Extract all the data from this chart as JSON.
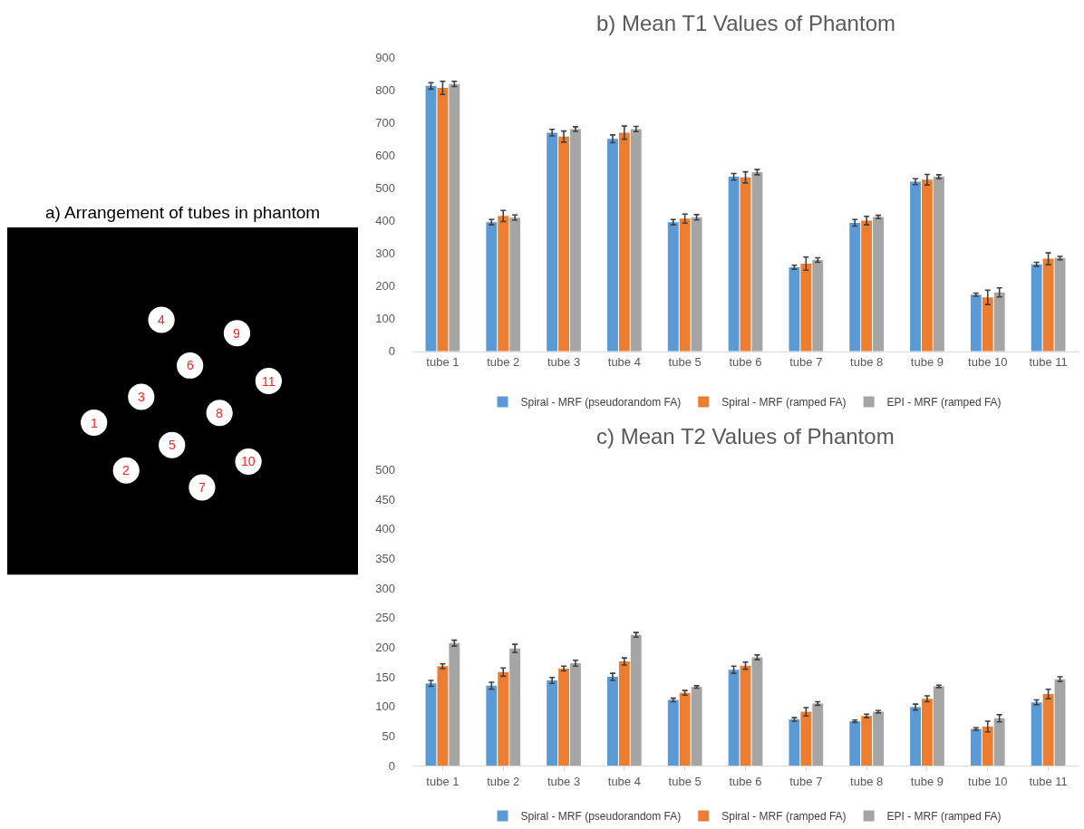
{
  "chart_data": [
    {
      "type": "other",
      "title": "a) Arrangement of tubes in phantom",
      "annotations": [
        "1",
        "2",
        "3",
        "4",
        "5",
        "6",
        "7",
        "8",
        "9",
        "10",
        "11"
      ]
    },
    {
      "type": "bar",
      "title": "b) Mean T1 Values of Phantom",
      "categories": [
        "tube 1",
        "tube 2",
        "tube 3",
        "tube 4",
        "tube 5",
        "tube 6",
        "tube 7",
        "tube 8",
        "tube 9",
        "tube 10",
        "tube 11"
      ],
      "series": [
        {
          "name": "Spiral - MRF (pseudorandom FA)",
          "color": "#5b9bd5",
          "values": [
            812,
            395,
            669,
            650,
            395,
            534,
            257,
            393,
            519,
            173,
            266
          ],
          "errors": [
            10,
            8,
            10,
            12,
            8,
            10,
            6,
            10,
            9,
            5,
            6
          ]
        },
        {
          "name": "Spiral - MRF (ramped FA)",
          "color": "#ed7d31",
          "values": [
            806,
            414,
            657,
            669,
            406,
            532,
            268,
            400,
            525,
            165,
            283
          ],
          "errors": [
            20,
            17,
            17,
            20,
            14,
            17,
            20,
            13,
            16,
            22,
            18
          ]
        },
        {
          "name": "EPI - MRF (ramped FA)",
          "color": "#a5a5a5",
          "values": [
            818,
            409,
            680,
            680,
            410,
            548,
            279,
            411,
            534,
            180,
            285
          ],
          "errors": [
            8,
            8,
            7,
            8,
            8,
            8,
            7,
            5,
            6,
            14,
            5
          ]
        }
      ],
      "ylim": [
        0,
        900
      ],
      "yticks": [
        0,
        100,
        200,
        300,
        400,
        500,
        600,
        700,
        800,
        900
      ],
      "grid": false,
      "legend": "bottom"
    },
    {
      "type": "bar",
      "title": "c) Mean T2 Values of Phantom",
      "categories": [
        "tube 1",
        "tube 2",
        "tube 3",
        "tube 4",
        "tube 5",
        "tube 6",
        "tube 7",
        "tube 8",
        "tube 9",
        "tube 10",
        "tube 11"
      ],
      "series": [
        {
          "name": "Spiral - MRF (pseudorandom FA)",
          "color": "#5b9bd5",
          "values": [
            139,
            135,
            144,
            150,
            111,
            162,
            78,
            75,
            99,
            62,
            107
          ],
          "errors": [
            5,
            6,
            5,
            6,
            3,
            6,
            3,
            2,
            5,
            2,
            4
          ]
        },
        {
          "name": "Spiral - MRF (ramped FA)",
          "color": "#ed7d31",
          "values": [
            168,
            158,
            164,
            176,
            123,
            169,
            91,
            84,
            113,
            66,
            121
          ],
          "errors": [
            4,
            7,
            4,
            6,
            4,
            6,
            7,
            3,
            5,
            9,
            8
          ]
        },
        {
          "name": "EPI - MRF (ramped FA)",
          "color": "#a5a5a5",
          "values": [
            207,
            198,
            173,
            221,
            133,
            183,
            105,
            91,
            134,
            80,
            146
          ],
          "errors": [
            5,
            7,
            5,
            4,
            2,
            4,
            3,
            2,
            2,
            6,
            4
          ]
        }
      ],
      "ylim": [
        0,
        500
      ],
      "yticks": [
        0,
        50,
        100,
        150,
        200,
        250,
        300,
        350,
        400,
        450,
        500
      ],
      "grid": false,
      "legend": "bottom"
    }
  ]
}
